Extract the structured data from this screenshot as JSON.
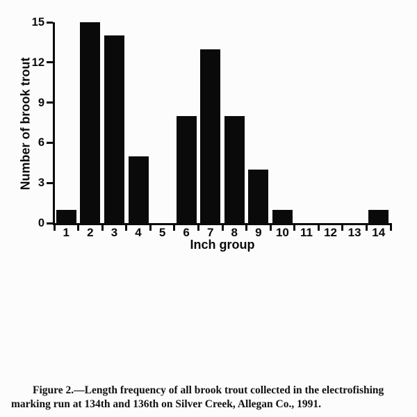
{
  "figure": {
    "caption": "Figure 2.—Length frequency of all brook trout collected in the electrofishing marking run at 134th and 136th on Silver Creek, Allegan Co., 1991."
  },
  "chart_data": {
    "type": "bar",
    "categories": [
      "1",
      "2",
      "3",
      "4",
      "5",
      "6",
      "7",
      "8",
      "9",
      "10",
      "11",
      "12",
      "13",
      "14"
    ],
    "values": [
      1,
      15,
      14,
      5,
      0,
      8,
      13,
      8,
      4,
      1,
      0,
      0,
      0,
      1
    ],
    "title": "",
    "xlabel": "Inch group",
    "ylabel": "Number of brook trout",
    "ylim": [
      0,
      15
    ],
    "yticks": [
      0,
      3,
      6,
      9,
      12,
      15
    ],
    "grid": false,
    "legend": "none",
    "bar_color": "#0a0a0a"
  },
  "colors": {
    "background": "#fcfcfc",
    "ink": "#0a0a0a"
  }
}
